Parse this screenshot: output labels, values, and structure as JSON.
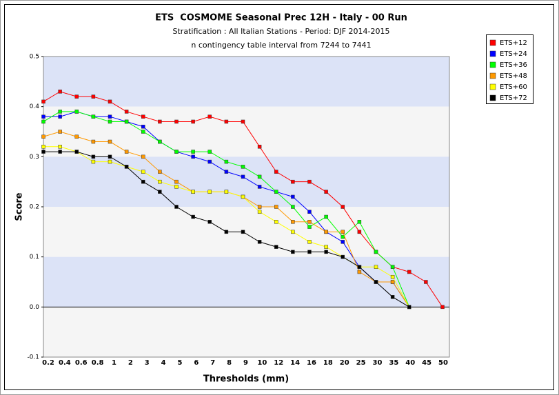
{
  "chart_data": {
    "type": "line",
    "title": "ETS  COSMOME Seasonal Prec 12H - Italy - 00 Run",
    "subtitle": [
      "Stratification : All Italian Stations - Period: DJF 2014-2015",
      "n contingency table interval from 7244 to 7441"
    ],
    "x_label": "Thresholds (mm)",
    "y_label": "Score",
    "categories": [
      "0.2",
      "0.4",
      "0.6",
      "0.8",
      "1",
      "2",
      "3",
      "4",
      "5",
      "6",
      "7",
      "8",
      "9",
      "10",
      "12",
      "14",
      "16",
      "18",
      "20",
      "25",
      "30",
      "35",
      "40",
      "45",
      "50"
    ],
    "ylim": [
      -0.1,
      0.5
    ],
    "yticks": [
      0.5,
      0.4,
      0.3,
      0.2,
      0.1,
      {
        "value": 0,
        "label": "0.0"
      },
      -0.1
    ],
    "band_colors": [
      "#dce3f7",
      "#f5f5f5"
    ],
    "series": [
      {
        "name": "ETS+12",
        "color": "#ff0000",
        "values": [
          0.41,
          0.43,
          0.42,
          0.42,
          0.41,
          0.39,
          0.38,
          0.37,
          0.37,
          0.37,
          0.38,
          0.37,
          0.37,
          0.32,
          0.27,
          0.25,
          0.25,
          0.23,
          0.2,
          0.15,
          0.11,
          0.08,
          0.07,
          0.05,
          0.0
        ]
      },
      {
        "name": "ETS+24",
        "color": "#0000ff",
        "values": [
          0.38,
          0.38,
          0.39,
          0.38,
          0.38,
          0.37,
          0.36,
          0.33,
          0.31,
          0.3,
          0.29,
          0.27,
          0.26,
          0.24,
          0.23,
          0.22,
          0.19,
          0.15,
          0.13,
          0.08,
          0.05,
          0.05,
          0.0,
          null,
          null
        ]
      },
      {
        "name": "ETS+36",
        "color": "#00ff00",
        "values": [
          0.37,
          0.39,
          0.39,
          0.38,
          0.37,
          0.37,
          0.35,
          0.33,
          0.31,
          0.31,
          0.31,
          0.29,
          0.28,
          0.26,
          0.23,
          0.2,
          0.16,
          0.18,
          0.14,
          0.17,
          0.11,
          0.08,
          0.0,
          null,
          null
        ]
      },
      {
        "name": "ETS+48",
        "color": "#ff9900",
        "values": [
          0.34,
          0.35,
          0.34,
          0.33,
          0.33,
          0.31,
          0.3,
          0.27,
          0.25,
          0.23,
          0.23,
          0.23,
          0.22,
          0.2,
          0.2,
          0.17,
          0.17,
          0.15,
          0.15,
          0.07,
          0.05,
          0.05,
          0.0,
          null,
          null
        ]
      },
      {
        "name": "ETS+60",
        "color": "#ffff00",
        "values": [
          0.32,
          0.32,
          0.31,
          0.29,
          0.29,
          0.28,
          0.27,
          0.25,
          0.24,
          0.23,
          0.23,
          0.23,
          0.22,
          0.19,
          0.17,
          0.15,
          0.13,
          0.12,
          0.1,
          0.08,
          0.08,
          0.06,
          0.0,
          null,
          null
        ]
      },
      {
        "name": "ETS+72",
        "color": "#000000",
        "values": [
          0.31,
          0.31,
          0.31,
          0.3,
          0.3,
          0.28,
          0.25,
          0.23,
          0.2,
          0.18,
          0.17,
          0.15,
          0.15,
          0.13,
          0.12,
          0.11,
          0.11,
          0.11,
          0.1,
          0.08,
          0.05,
          0.02,
          0.0,
          null,
          null
        ]
      }
    ]
  }
}
